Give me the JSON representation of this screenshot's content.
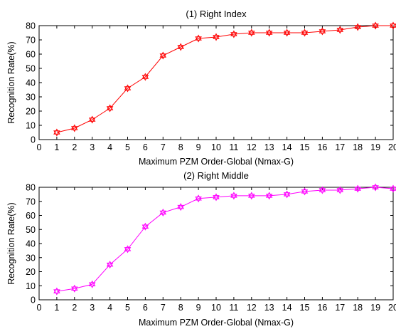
{
  "chart_data": [
    {
      "type": "line",
      "title": "(1) Right Index",
      "xlabel": "Maximum PZM Order-Global (Nmax-G)",
      "ylabel": "Recognition Rate(%)",
      "xlim": [
        0,
        20
      ],
      "ylim": [
        0,
        80
      ],
      "xticks": [
        "0",
        "1",
        "2",
        "3",
        "4",
        "5",
        "6",
        "7",
        "8",
        "9",
        "10",
        "11",
        "12",
        "13",
        "14",
        "15",
        "16",
        "17",
        "18",
        "19",
        "20"
      ],
      "yticks": [
        "0",
        "10",
        "20",
        "30",
        "40",
        "50",
        "60",
        "70",
        "80"
      ],
      "grid": false,
      "color": "#ff0000",
      "marker": "hexagram",
      "series": [
        {
          "x": [
            1,
            2,
            3,
            4,
            5,
            6,
            7,
            8,
            9,
            10,
            11,
            12,
            13,
            14,
            15,
            16,
            17,
            18,
            19,
            20
          ],
          "values": [
            5,
            8,
            14,
            22,
            36,
            44,
            59,
            65,
            71,
            72,
            74,
            75,
            75,
            75,
            75,
            76,
            77,
            79,
            80,
            80
          ]
        }
      ]
    },
    {
      "type": "line",
      "title": "(2) Right Middle",
      "xlabel": "Maximum PZM Order-Global (Nmax-G)",
      "ylabel": "Recognition Rate(%)",
      "xlim": [
        0,
        20
      ],
      "ylim": [
        0,
        80
      ],
      "xticks": [
        "0",
        "1",
        "2",
        "3",
        "4",
        "5",
        "6",
        "7",
        "8",
        "9",
        "10",
        "11",
        "12",
        "13",
        "14",
        "15",
        "16",
        "17",
        "18",
        "19",
        "20"
      ],
      "yticks": [
        "0",
        "10",
        "20",
        "30",
        "40",
        "50",
        "60",
        "70",
        "80"
      ],
      "grid": false,
      "color": "#ff00ff",
      "marker": "hexagram",
      "series": [
        {
          "x": [
            1,
            2,
            3,
            4,
            5,
            6,
            7,
            8,
            9,
            10,
            11,
            12,
            13,
            14,
            15,
            16,
            17,
            18,
            19,
            20
          ],
          "values": [
            6,
            8,
            11,
            25,
            36,
            52,
            62,
            66,
            72,
            73,
            74,
            74,
            74,
            75,
            77,
            78,
            78,
            79,
            80,
            79
          ]
        }
      ]
    }
  ]
}
